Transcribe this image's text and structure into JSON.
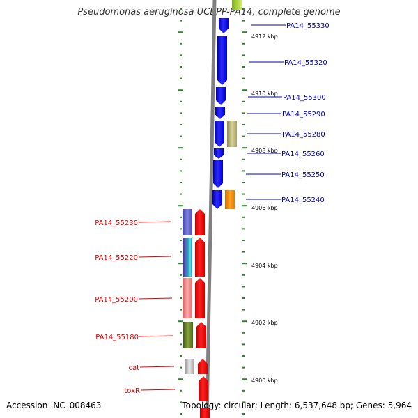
{
  "title": "Pseudomonas aeruginosa UCBPP-PA14, complete genome",
  "accession_text": "Accession: NC_008463",
  "summary_text": "Topology: circular; Length: 6,537,648 bp; Genes: 5,964",
  "colors": {
    "right_labels": "#0000c0",
    "left_labels": "#e00000",
    "tick": "#2a8a2a",
    "backbone": "#808080"
  },
  "scale_labels": [
    "4912 kbp",
    "4910 kbp",
    "4908 kbp",
    "4906 kbp",
    "4904 kbp",
    "4902 kbp",
    "4900 kbp"
  ],
  "right_genes": [
    {
      "label": "PA14_55330"
    },
    {
      "label": "PA14_55320"
    },
    {
      "label": "PA14_55300"
    },
    {
      "label": "PA14_55290"
    },
    {
      "label": "PA14_55280"
    },
    {
      "label": "PA14_55260"
    },
    {
      "label": "PA14_55250"
    },
    {
      "label": "PA14_55240"
    }
  ],
  "left_genes": [
    {
      "label": "PA14_55230"
    },
    {
      "label": "PA14_55220"
    },
    {
      "label": "PA14_55200"
    },
    {
      "label": "PA14_55180"
    },
    {
      "label": "cat"
    },
    {
      "label": "toxR"
    }
  ]
}
